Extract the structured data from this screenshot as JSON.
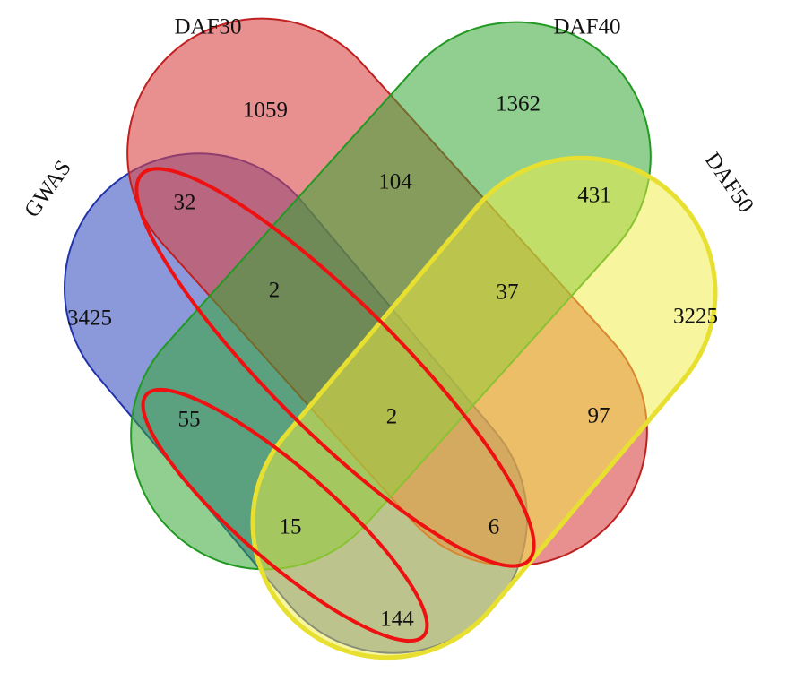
{
  "sets": [
    "GWAS",
    "DAF30",
    "DAF40",
    "DAF50"
  ],
  "regions": [
    1059,
    1362,
    32,
    104,
    431,
    3425,
    2,
    37,
    3225,
    55,
    2,
    97,
    15,
    6,
    144
  ]
}
